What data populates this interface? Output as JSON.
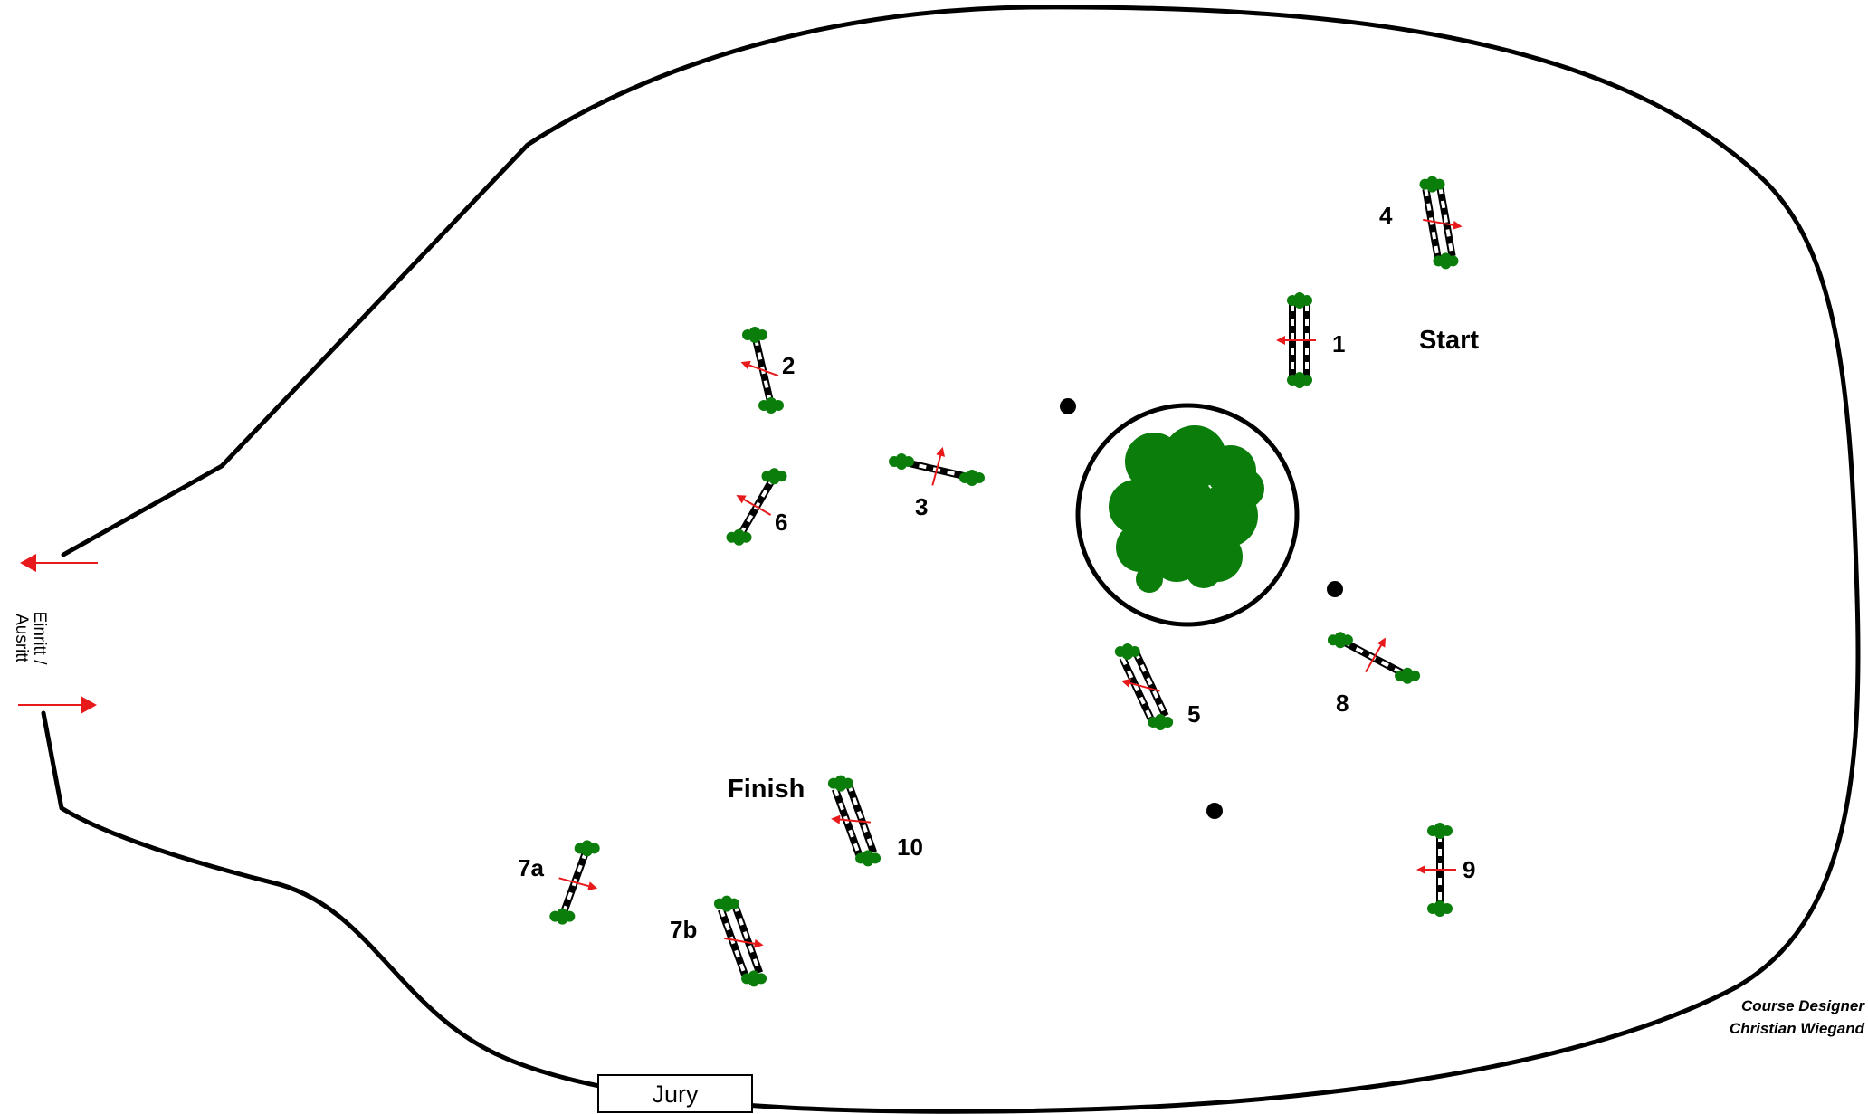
{
  "course": {
    "start_label": "Start",
    "finish_label": "Finish",
    "gate_label": [
      "Einritt /",
      "Ausritt"
    ],
    "jury_label": "Jury",
    "designer_title": "Course Designer",
    "designer_name": "Christian Wiegand"
  },
  "obstacles": [
    {
      "label": "1",
      "kind": "oxer"
    },
    {
      "label": "2",
      "kind": "vertical"
    },
    {
      "label": "3",
      "kind": "vertical"
    },
    {
      "label": "4",
      "kind": "oxer"
    },
    {
      "label": "5",
      "kind": "oxer"
    },
    {
      "label": "6",
      "kind": "vertical"
    },
    {
      "label": "7a",
      "kind": "vertical"
    },
    {
      "label": "7b",
      "kind": "oxer"
    },
    {
      "label": "8",
      "kind": "vertical"
    },
    {
      "label": "9",
      "kind": "vertical"
    },
    {
      "label": "10",
      "kind": "oxer"
    }
  ],
  "colors": {
    "outline": "#000000",
    "foliage": "#0a7d0a",
    "arrow": "#e8191b",
    "pole": "#000000",
    "pole_stripe": "#ffffff"
  }
}
